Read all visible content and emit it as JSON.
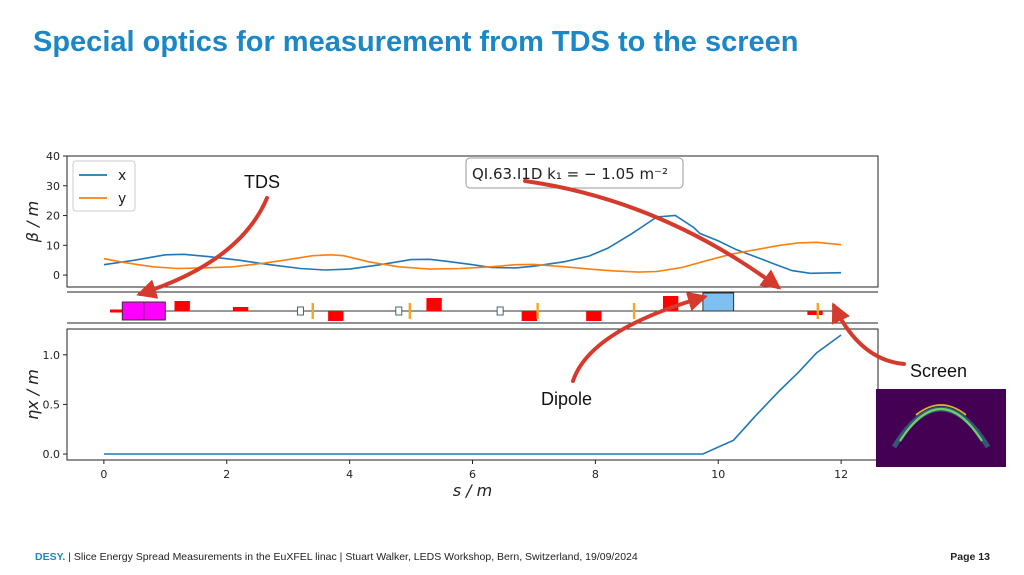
{
  "slide": {
    "title": "Special optics for measurement from TDS to the screen",
    "footer_brand": "DESY.",
    "footer_text": "| Slice Energy Spread Measurements in the EuXFEL linac | Stuart Walker, LEDS Workshop, Bern, Switzerland, 19/09/2024",
    "page_label": "Page 13"
  },
  "annotations": {
    "tds": "TDS",
    "dipole": "Dipole",
    "screen": "Screen",
    "quad_box": "QI.63.I1D k₁ = − 1.05 m⁻²",
    "arrow_color": "#d63a2c"
  },
  "colors": {
    "x": "#1f77b4",
    "y": "#ff7f0e",
    "quad": "#ff0000",
    "tds": "#ff00ff",
    "dipole": "#7ec0f0",
    "sext": "#f5a623"
  },
  "chart_data": [
    {
      "type": "line",
      "ylabel": "β / m",
      "xlim": [
        -0.6,
        12.6
      ],
      "ylim": [
        -4,
        40
      ],
      "yticks": [
        0,
        10,
        20,
        30,
        40
      ],
      "legend": "top-left",
      "series": [
        {
          "name": "x",
          "x": [
            0,
            0.5,
            1,
            1.3,
            1.7,
            2.2,
            2.7,
            3.2,
            3.6,
            4,
            4.5,
            5,
            5.3,
            5.6,
            6,
            6.3,
            6.7,
            7,
            7.5,
            7.9,
            8.2,
            8.6,
            9,
            9.3,
            9.6,
            9.7,
            10,
            10.3,
            10.6,
            10.9,
            11.2,
            11.5,
            12
          ],
          "values": [
            3.5,
            5,
            6.8,
            7,
            6.2,
            5,
            3.5,
            2.2,
            1.7,
            2,
            3.5,
            5.2,
            5.3,
            4.6,
            3.5,
            2.6,
            2.4,
            3,
            4.5,
            6.4,
            9,
            14,
            19.5,
            20,
            16,
            14,
            11.5,
            8.5,
            6.2,
            3.8,
            1.5,
            0.6,
            0.8
          ]
        },
        {
          "name": "y",
          "x": [
            0,
            0.4,
            0.8,
            1.2,
            1.6,
            2.1,
            2.6,
            3,
            3.4,
            3.7,
            3.9,
            4.3,
            4.8,
            5.3,
            5.8,
            6.3,
            6.7,
            7,
            7.5,
            7.9,
            8.3,
            8.7,
            9,
            9.4,
            9.8,
            10.2,
            10.6,
            11,
            11.3,
            11.6,
            12
          ],
          "values": [
            5.5,
            4,
            2.8,
            2.2,
            2.4,
            2.8,
            4,
            5.2,
            6.5,
            6.8,
            6.5,
            4.5,
            2.8,
            2,
            2.2,
            2.8,
            3.5,
            3.6,
            2.8,
            2,
            1.4,
            1,
            1.2,
            2.5,
            4.8,
            7,
            8.5,
            10,
            10.8,
            11,
            10.2
          ]
        }
      ]
    },
    {
      "type": "lattice",
      "elements": [
        {
          "kind": "quad",
          "s": 0.1,
          "len": 0.25,
          "sign": 0
        },
        {
          "kind": "tds",
          "s": 0.3,
          "len": 0.7
        },
        {
          "kind": "quad",
          "s": 1.15,
          "len": 0.25,
          "sign": 1
        },
        {
          "kind": "quad",
          "s": 2.1,
          "len": 0.25,
          "sign": 0.4
        },
        {
          "kind": "monitor",
          "s": 3.2
        },
        {
          "kind": "sext",
          "s": 3.4
        },
        {
          "kind": "quad",
          "s": 3.65,
          "len": 0.25,
          "sign": -1
        },
        {
          "kind": "monitor",
          "s": 4.8
        },
        {
          "kind": "sext",
          "s": 4.98
        },
        {
          "kind": "quad",
          "s": 5.25,
          "len": 0.25,
          "sign": 1.3
        },
        {
          "kind": "monitor",
          "s": 6.45
        },
        {
          "kind": "quad",
          "s": 6.8,
          "len": 0.25,
          "sign": -1
        },
        {
          "kind": "sext",
          "s": 7.06
        },
        {
          "kind": "quad",
          "s": 7.85,
          "len": 0.25,
          "sign": -1
        },
        {
          "kind": "sext",
          "s": 8.63
        },
        {
          "kind": "quad",
          "s": 9.1,
          "len": 0.25,
          "sign": 1.5
        },
        {
          "kind": "dipole",
          "s": 9.75,
          "len": 0.5
        },
        {
          "kind": "quad",
          "s": 11.45,
          "len": 0.25,
          "sign": -0.4
        },
        {
          "kind": "sext",
          "s": 11.62
        }
      ]
    },
    {
      "type": "line",
      "xlabel": "s / m",
      "ylabel": "ηx / m",
      "xlim": [
        -0.6,
        12.6
      ],
      "ylim": [
        -0.06,
        1.26
      ],
      "yticks": [
        0.0,
        0.5,
        1.0
      ],
      "xticks": [
        0,
        2,
        4,
        6,
        8,
        10,
        12
      ],
      "series": [
        {
          "x": [
            0,
            9.75,
            10.25,
            10.6,
            11,
            11.3,
            11.6,
            12
          ],
          "values": [
            0,
            0,
            0.14,
            0.38,
            0.64,
            0.82,
            1.02,
            1.2
          ]
        }
      ]
    }
  ]
}
